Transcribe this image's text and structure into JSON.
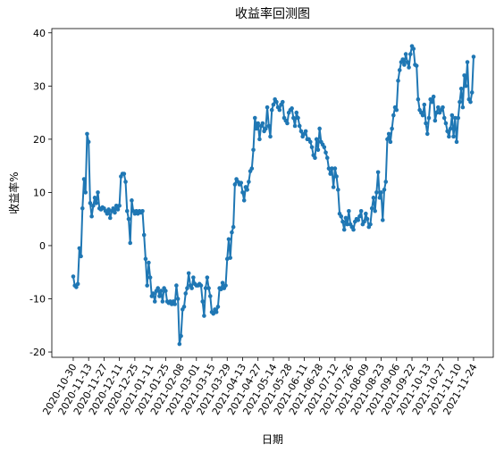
{
  "chart_data": {
    "type": "line",
    "title": "收益率回测图",
    "x_label": "日期",
    "y_label": "收益率%",
    "series": [
      {
        "name": "收益率",
        "color": "#1f77b4",
        "values": [
          -5.8,
          -7.5,
          -7.8,
          -7.2,
          -0.5,
          -2,
          7,
          12.5,
          10,
          21,
          19.5,
          8,
          5.5,
          7.5,
          9,
          8,
          10,
          7,
          6.8,
          7.2,
          7,
          6.5,
          6,
          6.8,
          5.2,
          6.5,
          7,
          6.2,
          7.5,
          6.8,
          7.5,
          13,
          13.5,
          13.5,
          12,
          6.5,
          5,
          0.5,
          8.5,
          6.5,
          6,
          6.5,
          6,
          6.5,
          6.2,
          6.5,
          2,
          -2.5,
          -7.5,
          -3.2,
          -6,
          -9.5,
          -9,
          -10.5,
          -8.5,
          -8,
          -9.5,
          -8.5,
          -10.5,
          -8,
          -8.5,
          -10.5,
          -10.8,
          -10.5,
          -11,
          -10.5,
          -11,
          -7.5,
          -10,
          -18.5,
          -17,
          -12,
          -11.5,
          -9,
          -8,
          -5.2,
          -7.5,
          -8,
          -6,
          -7.2,
          -7.5,
          -7.5,
          -7.2,
          -7.5,
          -10.5,
          -13.2,
          -8,
          -6,
          -8,
          -9.5,
          -12.5,
          -12.8,
          -12,
          -12.5,
          -11.5,
          -8,
          -8.2,
          -7,
          -8,
          -7.5,
          -2.5,
          1.2,
          -2.3,
          2.5,
          3.5,
          11.5,
          12.5,
          12,
          11.5,
          11.8,
          10,
          8.5,
          11,
          10.5,
          12,
          14,
          14.5,
          18,
          24,
          22,
          23,
          20,
          22.5,
          23,
          21.5,
          22,
          26,
          22.5,
          20.5,
          25.5,
          26.5,
          27.5,
          27,
          26,
          25.5,
          26.5,
          27,
          24,
          23.5,
          23,
          25,
          25.5,
          25.8,
          24,
          22.5,
          25,
          24,
          22.5,
          21.5,
          20.5,
          21,
          21.5,
          20,
          20,
          19.5,
          18.5,
          17,
          16.5,
          20,
          18,
          22,
          19.5,
          19,
          18.5,
          17.5,
          16.5,
          14.5,
          13.5,
          14.5,
          11,
          14.5,
          13,
          10.5,
          6,
          5.5,
          4.5,
          3,
          5.2,
          4,
          6.5,
          4,
          3.5,
          3,
          4.5,
          5,
          4.8,
          5.5,
          6.5,
          4,
          4.5,
          6,
          5,
          3.5,
          4,
          7,
          9,
          6.5,
          10,
          13.8,
          9,
          10,
          4.8,
          10.5,
          12,
          20,
          21,
          19.5,
          22,
          24.5,
          26,
          25.5,
          31,
          33,
          34.5,
          35,
          34,
          36,
          34.5,
          33.5,
          36,
          37.5,
          37,
          34,
          33.8,
          27.5,
          25.5,
          25,
          24.5,
          26.5,
          23,
          21,
          24,
          27.5,
          27,
          28,
          23.5,
          25,
          26,
          25,
          25.5,
          26,
          24,
          23,
          21.5,
          20.5,
          22,
          24.5,
          20.5,
          24,
          19.5,
          24,
          27,
          29.5,
          26,
          32,
          30,
          34.5,
          27.5,
          27,
          28.8,
          35.5
        ]
      }
    ],
    "xlim": [
      -13.9,
      272.8
    ],
    "xticks": [
      {
        "value": 0,
        "label": "2020-10-30"
      },
      {
        "value": 10,
        "label": "2020-11-13"
      },
      {
        "value": 20,
        "label": "2020-11-27"
      },
      {
        "value": 30,
        "label": "2020-12-11"
      },
      {
        "value": 40,
        "label": "2020-12-25"
      },
      {
        "value": 50,
        "label": "2021-01-11"
      },
      {
        "value": 60,
        "label": "2021-01-25"
      },
      {
        "value": 70,
        "label": "2021-02-08"
      },
      {
        "value": 80,
        "label": "2021-03-01"
      },
      {
        "value": 90,
        "label": "2021-03-15"
      },
      {
        "value": 100,
        "label": "2021-03-29"
      },
      {
        "value": 110,
        "label": "2021-04-13"
      },
      {
        "value": 120,
        "label": "2021-04-27"
      },
      {
        "value": 130,
        "label": "2021-05-14"
      },
      {
        "value": 140,
        "label": "2021-05-28"
      },
      {
        "value": 150,
        "label": "2021-06-11"
      },
      {
        "value": 160,
        "label": "2021-06-28"
      },
      {
        "value": 170,
        "label": "2021-07-12"
      },
      {
        "value": 180,
        "label": "2021-07-26"
      },
      {
        "value": 190,
        "label": "2021-08-09"
      },
      {
        "value": 200,
        "label": "2021-08-23"
      },
      {
        "value": 210,
        "label": "2021-09-06"
      },
      {
        "value": 220,
        "label": "2021-09-22"
      },
      {
        "value": 230,
        "label": "2021-10-13"
      },
      {
        "value": 240,
        "label": "2021-10-27"
      },
      {
        "value": 250,
        "label": "2021-11-10"
      },
      {
        "value": 260,
        "label": "2021-11-24"
      }
    ],
    "ylim": [
      -21,
      40.8
    ],
    "yticks": [
      -20,
      -10,
      0,
      10,
      20,
      30,
      40
    ],
    "grid": false
  }
}
